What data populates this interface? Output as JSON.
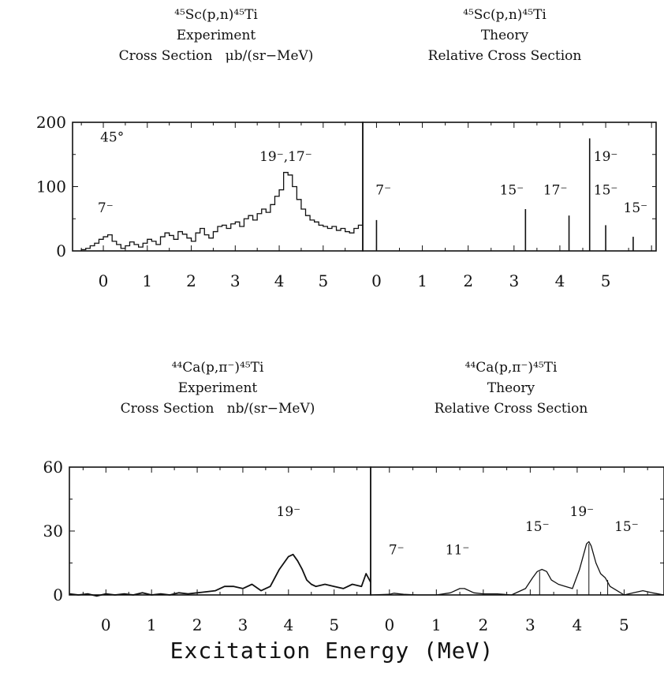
{
  "titles": {
    "p1": {
      "reaction": "⁴⁵Sc(p,n)⁴⁵Ti",
      "kind": "Experiment",
      "units": "Cross Section   μb/(sr−MeV)"
    },
    "p2": {
      "reaction": "⁴⁵Sc(p,n)⁴⁵Ti",
      "kind": "Theory",
      "units": "Relative Cross Section"
    },
    "p3": {
      "reaction": "⁴⁴Ca(p,π⁻)⁴⁵Ti",
      "kind": "Experiment",
      "units": "Cross Section   nb/(sr−MeV)"
    },
    "p4": {
      "reaction": "⁴⁴Ca(p,π⁻)⁴⁵Ti",
      "kind": "Theory",
      "units": "Relative Cross Section"
    }
  },
  "xlabel": "Excitation Energy (MeV)",
  "chart_data": [
    {
      "type": "line",
      "panel": "top-left",
      "style": "histogram",
      "xlim": [
        -0.7,
        5.9
      ],
      "ylim": [
        0,
        200
      ],
      "yticks": [
        0,
        100,
        200
      ],
      "xticks": [
        0,
        1,
        2,
        3,
        4,
        5
      ],
      "x": [
        -0.5,
        -0.4,
        -0.3,
        -0.2,
        -0.1,
        0.0,
        0.1,
        0.2,
        0.3,
        0.4,
        0.5,
        0.6,
        0.7,
        0.8,
        0.9,
        1.0,
        1.1,
        1.2,
        1.3,
        1.4,
        1.5,
        1.6,
        1.7,
        1.8,
        1.9,
        2.0,
        2.1,
        2.2,
        2.3,
        2.4,
        2.5,
        2.6,
        2.7,
        2.8,
        2.9,
        3.0,
        3.1,
        3.2,
        3.3,
        3.4,
        3.5,
        3.6,
        3.7,
        3.8,
        3.9,
        4.0,
        4.1,
        4.2,
        4.3,
        4.4,
        4.5,
        4.6,
        4.7,
        4.8,
        4.9,
        5.0,
        5.1,
        5.2,
        5.3,
        5.4,
        5.5,
        5.6,
        5.7,
        5.8
      ],
      "values": [
        2,
        4,
        8,
        12,
        18,
        22,
        25,
        15,
        10,
        4,
        8,
        14,
        10,
        6,
        12,
        18,
        15,
        10,
        22,
        28,
        24,
        18,
        30,
        26,
        20,
        15,
        28,
        35,
        25,
        20,
        30,
        38,
        40,
        35,
        42,
        45,
        38,
        50,
        55,
        48,
        58,
        65,
        60,
        72,
        85,
        95,
        122,
        118,
        100,
        80,
        65,
        55,
        48,
        45,
        40,
        38,
        35,
        38,
        32,
        35,
        30,
        28,
        35,
        40
      ],
      "annotations": [
        {
          "label": "45°",
          "x": 0.2,
          "y": 170
        },
        {
          "label": "7⁻",
          "x": 0.05,
          "y": 60
        },
        {
          "label": "19⁻,17⁻",
          "x": 4.15,
          "y": 140
        }
      ]
    },
    {
      "type": "bar",
      "panel": "top-right",
      "style": "stick",
      "xlim": [
        -0.3,
        6.1
      ],
      "ylim": [
        0,
        200
      ],
      "xticks": [
        0,
        1,
        2,
        3,
        4,
        5
      ],
      "x": [
        0.0,
        3.25,
        4.2,
        4.65,
        5.0,
        5.6
      ],
      "values": [
        48,
        65,
        55,
        175,
        40,
        22
      ],
      "annotations": [
        {
          "label": "7⁻",
          "x": 0.15,
          "y": 88
        },
        {
          "label": "15⁻",
          "x": 2.95,
          "y": 88
        },
        {
          "label": "17⁻",
          "x": 3.9,
          "y": 88
        },
        {
          "label": "19⁻",
          "x": 5.0,
          "y": 140
        },
        {
          "label": "15⁻",
          "x": 5.0,
          "y": 88
        },
        {
          "label": "15⁻",
          "x": 5.65,
          "y": 60
        }
      ]
    },
    {
      "type": "line",
      "panel": "bottom-left",
      "xlim": [
        -0.8,
        5.8
      ],
      "ylim": [
        0,
        60
      ],
      "yticks": [
        0,
        30,
        60
      ],
      "xticks": [
        0,
        1,
        2,
        3,
        4,
        5
      ],
      "x": [
        -0.8,
        -0.6,
        -0.4,
        -0.2,
        0.0,
        0.2,
        0.4,
        0.6,
        0.8,
        1.0,
        1.2,
        1.4,
        1.6,
        1.8,
        2.0,
        2.2,
        2.4,
        2.6,
        2.8,
        3.0,
        3.2,
        3.4,
        3.6,
        3.8,
        3.9,
        4.0,
        4.1,
        4.2,
        4.3,
        4.4,
        4.5,
        4.6,
        4.8,
        5.0,
        5.2,
        5.4,
        5.6,
        5.7,
        5.8
      ],
      "values": [
        0.5,
        0,
        0.5,
        -0.5,
        0.5,
        0,
        0.5,
        0,
        1,
        0,
        0.5,
        0,
        1,
        0.5,
        1,
        1.5,
        2,
        4,
        4,
        3,
        5,
        2,
        4,
        12,
        15,
        18,
        19,
        16,
        12,
        7,
        5,
        4,
        5,
        4,
        3,
        5,
        4,
        10,
        6
      ],
      "annotations": [
        {
          "label": "19⁻",
          "x": 4.0,
          "y": 37
        }
      ]
    },
    {
      "type": "line",
      "panel": "bottom-right",
      "xlim": [
        -0.4,
        5.85
      ],
      "ylim": [
        0,
        60
      ],
      "xticks": [
        0,
        1,
        2,
        3,
        4,
        5
      ],
      "x": [
        -0.4,
        0.0,
        0.1,
        0.3,
        0.6,
        1.0,
        1.3,
        1.5,
        1.6,
        1.8,
        2.0,
        2.3,
        2.6,
        2.9,
        3.05,
        3.15,
        3.25,
        3.35,
        3.45,
        3.6,
        3.75,
        3.9,
        4.05,
        4.2,
        4.25,
        4.3,
        4.4,
        4.5,
        4.6,
        4.7,
        4.85,
        5.0,
        5.2,
        5.4,
        5.6,
        5.85
      ],
      "values": [
        0,
        0.3,
        0.8,
        0.3,
        0,
        0,
        1,
        3,
        3,
        1,
        0.5,
        0.5,
        0,
        3,
        8,
        11,
        12,
        11,
        7,
        5,
        4,
        3,
        12,
        24,
        25,
        23,
        15,
        10,
        8,
        4,
        2,
        0,
        1,
        2,
        1,
        0
      ],
      "sticks": [
        {
          "x": 3.2,
          "value": 11
        },
        {
          "x": 4.25,
          "value": 24
        },
        {
          "x": 4.65,
          "value": 7
        }
      ],
      "annotations": [
        {
          "label": "7⁻",
          "x": 0.15,
          "y": 19
        },
        {
          "label": "11⁻",
          "x": 1.45,
          "y": 19
        },
        {
          "label": "15⁻",
          "x": 3.15,
          "y": 30
        },
        {
          "label": "19⁻",
          "x": 4.1,
          "y": 37
        },
        {
          "label": "15⁻",
          "x": 5.05,
          "y": 30
        }
      ]
    }
  ]
}
